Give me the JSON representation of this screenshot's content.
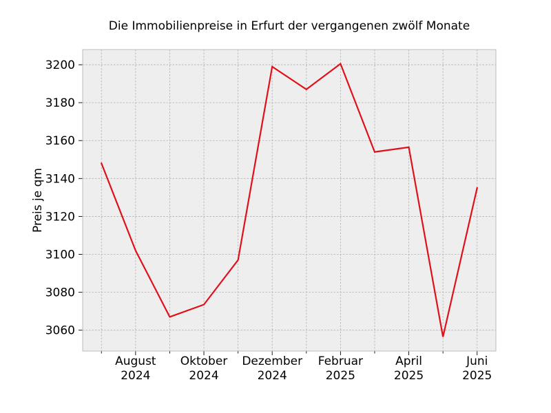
{
  "chart_data": {
    "type": "line",
    "title": "Die Immobilienpreise in Erfurt der vergangenen zwölf Monate",
    "xlabel": "",
    "ylabel": "Preis je qm",
    "x": [
      "2024-07",
      "2024-08",
      "2024-09",
      "2024-10",
      "2024-11",
      "2024-12",
      "2025-01",
      "2025-02",
      "2025-03",
      "2025-04",
      "2025-05",
      "2025-06"
    ],
    "x_tick_labels": [
      {
        "x": "2024-08",
        "line1": "August",
        "line2": "2024"
      },
      {
        "x": "2024-10",
        "line1": "Oktober",
        "line2": "2024"
      },
      {
        "x": "2024-12",
        "line1": "Dezember",
        "line2": "2024"
      },
      {
        "x": "2025-02",
        "line1": "Februar",
        "line2": "2025"
      },
      {
        "x": "2025-04",
        "line1": "April",
        "line2": "2025"
      },
      {
        "x": "2025-06",
        "line1": "Juni",
        "line2": "2025"
      }
    ],
    "series": [
      {
        "values": [
          3148,
          3102,
          3067,
          3073.5,
          3097,
          3199,
          3187,
          3200.5,
          3154,
          3156.5,
          3056.5,
          3135
        ]
      }
    ],
    "ylim": [
      3049,
      3208
    ],
    "y_ticks": [
      3060,
      3080,
      3100,
      3120,
      3140,
      3160,
      3180,
      3200
    ],
    "grid": true,
    "line_color": "#e0101a",
    "plot_background": "#eeeeee",
    "frame_color": "#bcbcbc",
    "grid_color": "#b0b0b0"
  }
}
